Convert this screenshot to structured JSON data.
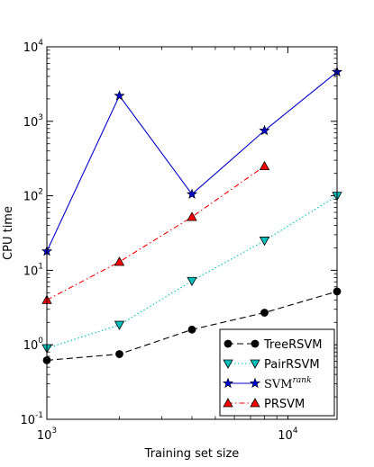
{
  "chart_data": {
    "type": "line",
    "xscale": "log",
    "yscale": "log",
    "xlabel": "Training set size",
    "ylabel": "CPU time",
    "xlim": [
      1000,
      16000
    ],
    "ylim": [
      0.1,
      10000
    ],
    "x_tick_labels": [
      {
        "value": 1000,
        "base": "10",
        "exp": "3"
      },
      {
        "value": 10000,
        "base": "10",
        "exp": "4"
      }
    ],
    "y_tick_labels": [
      {
        "value": 0.1,
        "base": "10",
        "exp": "-1"
      },
      {
        "value": 1,
        "base": "10",
        "exp": "0"
      },
      {
        "value": 10,
        "base": "10",
        "exp": "1"
      },
      {
        "value": 100,
        "base": "10",
        "exp": "2"
      },
      {
        "value": 1000,
        "base": "10",
        "exp": "3"
      },
      {
        "value": 10000,
        "base": "10",
        "exp": "4"
      }
    ],
    "legend_position": "lower-right",
    "series": [
      {
        "name": "TreeRSVM",
        "color": "#000000",
        "marker": "circle",
        "linestyle": "dashed",
        "x": [
          1000,
          2000,
          4000,
          8000,
          16000
        ],
        "y": [
          0.62,
          0.75,
          1.6,
          2.7,
          5.2
        ]
      },
      {
        "name": "PairRSVM",
        "color": "#00bfbf",
        "marker": "triangle-down",
        "linestyle": "dotted",
        "x": [
          1000,
          2000,
          4000,
          8000,
          16000
        ],
        "y": [
          0.9,
          1.85,
          7.2,
          25,
          100
        ]
      },
      {
        "name": "SVM",
        "name_superscript": "rank",
        "color": "#0000cc",
        "marker": "star",
        "linestyle": "solid",
        "x": [
          1000,
          2000,
          4000,
          8000,
          16000
        ],
        "y": [
          18,
          2200,
          105,
          750,
          4600
        ]
      },
      {
        "name": "PRSVM",
        "color": "#ff0000",
        "marker": "triangle-up",
        "linestyle": "dashdot",
        "x": [
          1000,
          2000,
          4000,
          8000
        ],
        "y": [
          4,
          13,
          52,
          250
        ]
      }
    ]
  }
}
